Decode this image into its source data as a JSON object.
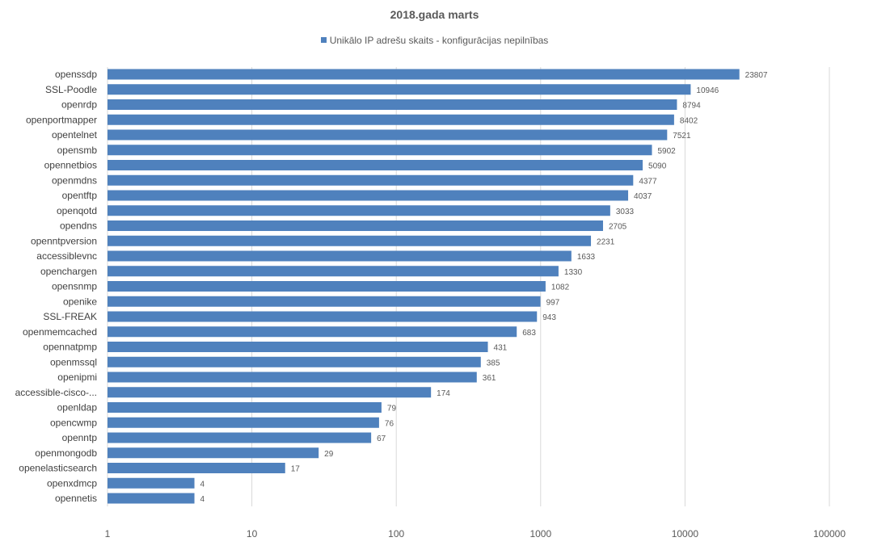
{
  "chart_data": {
    "type": "bar",
    "orientation": "horizontal",
    "title": "2018.gada marts",
    "legend_position": "top",
    "x_scale": "log",
    "xlim": [
      1,
      100000
    ],
    "x_ticks": [
      "1",
      "10",
      "100",
      "1000",
      "10000",
      "100000"
    ],
    "grid": true,
    "bar_color": "#4f81bd",
    "series": [
      {
        "name": "Unikālo IP adrešu skaits  -  konfigurācijas nepilnības"
      }
    ],
    "categories": [
      "openssdp",
      "SSL-Poodle",
      "openrdp",
      "openportmapper",
      "opentelnet",
      "opensmb",
      "opennetbios",
      "openmdns",
      "opentftp",
      "openqotd",
      "opendns",
      "openntpversion",
      "accessiblevnc",
      "openchargen",
      "opensnmp",
      "openike",
      "SSL-FREAK",
      "openmemcached",
      "opennatpmp",
      "openmssql",
      "openipmi",
      "accessible-cisco-...",
      "openldap",
      "opencwmp",
      "openntp",
      "openmongodb",
      "openelasticsearch",
      "openxdmcp",
      "opennetis"
    ],
    "values": [
      23807,
      10946,
      8794,
      8402,
      7521,
      5902,
      5090,
      4377,
      4037,
      3033,
      2705,
      2231,
      1633,
      1330,
      1082,
      997,
      943,
      683,
      431,
      385,
      361,
      174,
      79,
      76,
      67,
      29,
      17,
      4,
      4
    ]
  }
}
